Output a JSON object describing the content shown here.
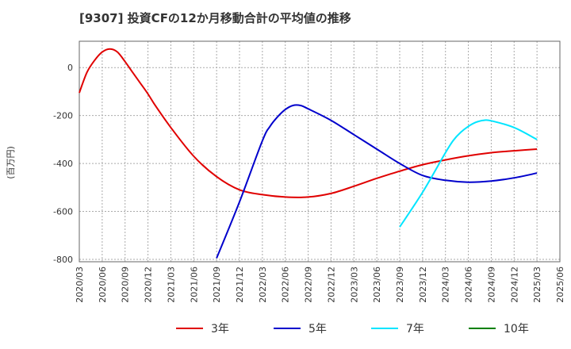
{
  "chart_data": {
    "type": "line",
    "title": "[9307]  投資CFの12か月移動合計の平均値の推移",
    "ylabel": "(百万円)",
    "xlabel": "",
    "ylim": [
      -810,
      110
    ],
    "yticks": [
      0,
      -200,
      -400,
      -600,
      -800
    ],
    "ytick_labels": [
      "0",
      "-200",
      "-400",
      "-600",
      "-800"
    ],
    "x_tick_labels": [
      "2020/03",
      "2020/06",
      "2020/09",
      "2020/12",
      "2021/03",
      "2021/06",
      "2021/09",
      "2021/12",
      "2022/03",
      "2022/06",
      "2022/09",
      "2022/12",
      "2023/03",
      "2023/06",
      "2023/09",
      "2023/12",
      "2024/03",
      "2024/06",
      "2024/09",
      "2024/12",
      "2025/03",
      "2025/06"
    ],
    "grid": true,
    "legend_position": "bottom",
    "series": [
      {
        "name": "3年",
        "color": "#e00000",
        "x": [
          "2020/03",
          "2020/04",
          "2020/05",
          "2020/06",
          "2020/07",
          "2020/08",
          "2020/09",
          "2020/10",
          "2020/11",
          "2020/12",
          "2021/01",
          "2021/03",
          "2021/06",
          "2021/09",
          "2021/12",
          "2022/03",
          "2022/06",
          "2022/09",
          "2022/12",
          "2023/03",
          "2023/06",
          "2023/09",
          "2023/12",
          "2024/03",
          "2024/06",
          "2024/09",
          "2024/12",
          "2025/03"
        ],
        "values": [
          -105,
          -20,
          30,
          65,
          78,
          65,
          25,
          -20,
          -65,
          -110,
          -160,
          -250,
          -370,
          -455,
          -510,
          -530,
          -540,
          -540,
          -525,
          -495,
          -462,
          -432,
          -405,
          -385,
          -368,
          -355,
          -347,
          -340
        ]
      },
      {
        "name": "5年",
        "color": "#0000cc",
        "x": [
          "2021/09",
          "2021/12",
          "2022/03",
          "2022/04",
          "2022/05",
          "2022/06",
          "2022/07",
          "2022/08",
          "2022/09",
          "2022/12",
          "2023/03",
          "2023/06",
          "2023/09",
          "2023/12",
          "2024/03",
          "2024/06",
          "2024/09",
          "2024/12",
          "2025/03"
        ],
        "values": [
          -795,
          -560,
          -305,
          -245,
          -205,
          -175,
          -158,
          -158,
          -172,
          -220,
          -280,
          -340,
          -400,
          -450,
          -470,
          -478,
          -473,
          -460,
          -440
        ]
      },
      {
        "name": "7年",
        "color": "#00e5ff",
        "x": [
          "2023/09",
          "2023/12",
          "2024/03",
          "2024/04",
          "2024/05",
          "2024/06",
          "2024/07",
          "2024/08",
          "2024/09",
          "2024/12",
          "2025/03"
        ],
        "values": [
          -665,
          -520,
          -355,
          -305,
          -270,
          -245,
          -228,
          -220,
          -222,
          -250,
          -300
        ]
      },
      {
        "name": "10年",
        "color": "#008000",
        "x": [],
        "values": []
      }
    ]
  }
}
